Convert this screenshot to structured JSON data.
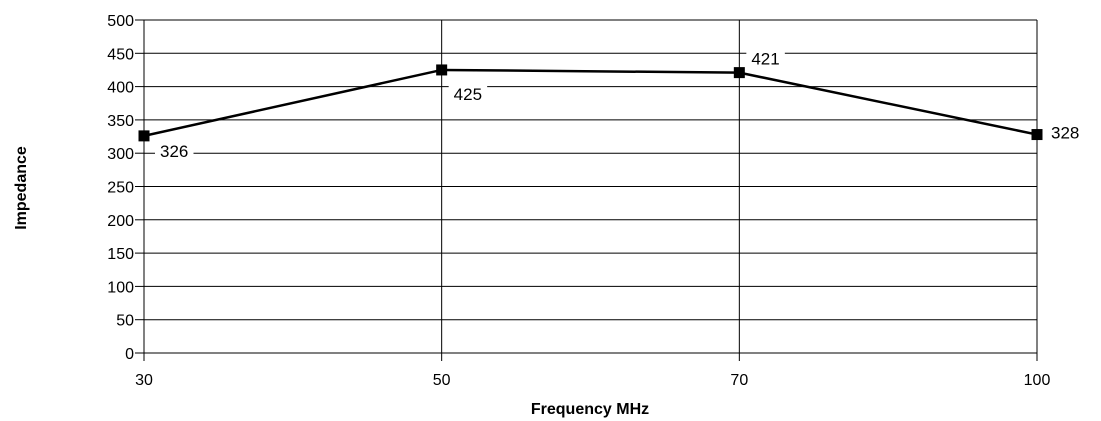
{
  "chart_data": {
    "type": "line",
    "categories": [
      "30",
      "50",
      "70",
      "100"
    ],
    "series": [
      {
        "values": [
          326,
          425,
          421,
          328
        ]
      }
    ],
    "data_labels": [
      "326",
      "425",
      "421",
      "328"
    ],
    "xlabel": "Frequency MHz",
    "ylabel": "Impedance",
    "ylim": [
      0,
      500
    ],
    "yticks": [
      "0",
      "50",
      "100",
      "150",
      "200",
      "250",
      "300",
      "350",
      "400",
      "450",
      "500"
    ],
    "grid": true,
    "legend": "none",
    "colors": {
      "line": "#000000",
      "marker": "#000000"
    }
  }
}
